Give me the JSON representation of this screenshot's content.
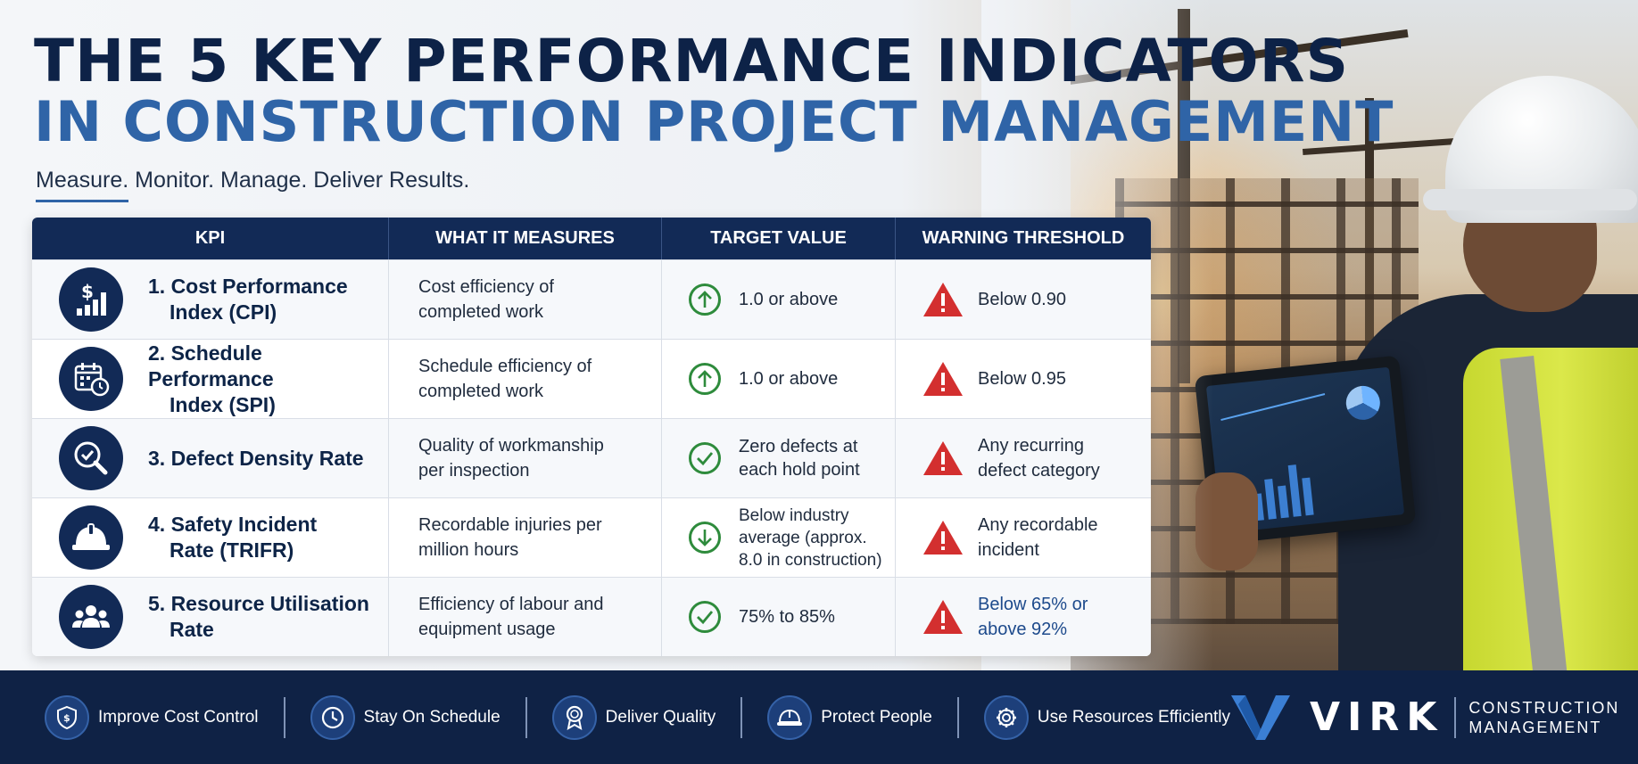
{
  "header": {
    "title_line1": "THE 5 KEY PERFORMANCE INDICATORS",
    "title_line2": "IN CONSTRUCTION PROJECT MANAGEMENT",
    "subtitle": "Measure. Monitor. Manage. Deliver Results."
  },
  "table": {
    "headers": [
      "KPI",
      "WHAT IT MEASURES",
      "TARGET VALUE",
      "WARNING THRESHOLD"
    ],
    "rows": [
      {
        "icon": "dollar-chart-icon",
        "kpi_line1": "1. Cost Performance",
        "kpi_line2": "Index (CPI)",
        "measure": "Cost efficiency of completed work",
        "target_icon": "arrow-up-icon",
        "target": "1.0 or above",
        "warning": "Below 0.90"
      },
      {
        "icon": "calendar-clock-icon",
        "kpi_line1": "2. Schedule Performance",
        "kpi_line2": "Index (SPI)",
        "measure": "Schedule efficiency of completed work",
        "target_icon": "arrow-up-icon",
        "target": "1.0 or above",
        "warning": "Below 0.95"
      },
      {
        "icon": "magnifier-check-icon",
        "kpi_line1": "3. Defect Density Rate",
        "kpi_line2": "",
        "measure": "Quality of workmanship per inspection",
        "target_icon": "check-icon",
        "target": "Zero defects at each hold point",
        "warning": "Any recurring defect category"
      },
      {
        "icon": "hard-hat-icon",
        "kpi_line1": "4. Safety Incident",
        "kpi_line2": "Rate (TRIFR)",
        "measure": "Recordable injuries per million hours",
        "target_icon": "arrow-down-icon",
        "target": "Below industry average (approx. 8.0 in construction)",
        "warning": "Any recordable incident"
      },
      {
        "icon": "people-icon",
        "kpi_line1": "5. Resource Utilisation",
        "kpi_line2": "Rate",
        "measure": "Efficiency of labour and equipment usage",
        "target_icon": "check-icon",
        "target": "75% to 85%",
        "warning": "Below 65% or above 92%"
      }
    ]
  },
  "footer": {
    "items": [
      {
        "icon": "shield-dollar-icon",
        "label": "Improve Cost Control"
      },
      {
        "icon": "clock-icon",
        "label": "Stay On Schedule"
      },
      {
        "icon": "award-ribbon-icon",
        "label": "Deliver Quality"
      },
      {
        "icon": "hard-hat-icon",
        "label": "Protect People"
      },
      {
        "icon": "gear-icon",
        "label": "Use Resources Efficiently"
      }
    ],
    "logo": {
      "word": "VIRK",
      "sub_line1": "CONSTRUCTION",
      "sub_line2": "MANAGEMENT"
    }
  },
  "colors": {
    "navy": "#122a56",
    "title_dark": "#0d2247",
    "title_blue": "#2f64a7",
    "target_green": "#2e8b3c",
    "warning_red": "#d32f2f",
    "footer_bg": "#0f2245"
  }
}
